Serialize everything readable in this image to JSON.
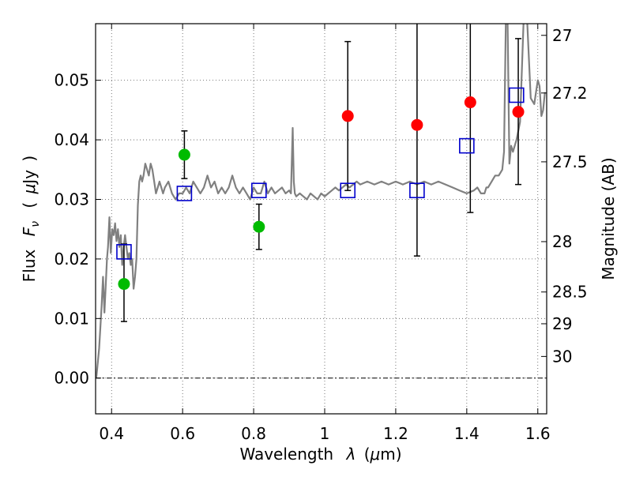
{
  "chart_data": {
    "type": "scatter",
    "xlabel": "Wavelength",
    "xlabel_symbol": "λ",
    "xlabel_unit_open": "(",
    "xlabel_unit_mu": "μ",
    "xlabel_unit_rest": "m)",
    "ylabel": "Flux",
    "ylabel_symbol_F": "F",
    "ylabel_symbol_sub": "ν",
    "ylabel_unit_open": "(",
    "ylabel_unit_mu": "μ",
    "ylabel_unit_rest": "Jy",
    "ylabel_unit_close": ")",
    "y2label": "Magnitude (AB)",
    "xlim": [
      0.355,
      1.625
    ],
    "ylim": [
      -0.006,
      0.0595
    ],
    "x_ticks": [
      0.4,
      0.6,
      0.8,
      1.0,
      1.2,
      1.4,
      1.6
    ],
    "x_tick_labels": [
      "0.4",
      "0.6",
      "0.8",
      "1",
      "1.2",
      "1.4",
      "1.6"
    ],
    "y_ticks": [
      0.0,
      0.01,
      0.02,
      0.03,
      0.04,
      0.05
    ],
    "y_tick_labels": [
      "0.00",
      "0.01",
      "0.02",
      "0.03",
      "0.04",
      "0.05"
    ],
    "mag_ticks": [
      27,
      27.2,
      27.5,
      28,
      28.5,
      29,
      30
    ],
    "mag_tick_labels": [
      "27",
      "27.2",
      "27.5",
      "28",
      "28.5",
      "29",
      "30"
    ],
    "grid": true,
    "colors": {
      "sed": "#808080",
      "green": "#00bb00",
      "red": "#ff0000",
      "model": "#0000cc",
      "errbar": "#000000",
      "grid": "#555555"
    },
    "series": [
      {
        "name": "SED model spectrum",
        "kind": "line",
        "x": [
          0.357,
          0.365,
          0.372,
          0.376,
          0.38,
          0.384,
          0.387,
          0.39,
          0.394,
          0.398,
          0.402,
          0.406,
          0.41,
          0.414,
          0.418,
          0.422,
          0.426,
          0.43,
          0.434,
          0.438,
          0.442,
          0.446,
          0.45,
          0.454,
          0.458,
          0.462,
          0.466,
          0.47,
          0.474,
          0.478,
          0.482,
          0.486,
          0.49,
          0.495,
          0.5,
          0.505,
          0.51,
          0.515,
          0.52,
          0.525,
          0.53,
          0.535,
          0.54,
          0.545,
          0.55,
          0.56,
          0.57,
          0.58,
          0.59,
          0.6,
          0.61,
          0.62,
          0.63,
          0.64,
          0.65,
          0.66,
          0.67,
          0.68,
          0.69,
          0.7,
          0.71,
          0.72,
          0.73,
          0.74,
          0.75,
          0.76,
          0.77,
          0.78,
          0.79,
          0.8,
          0.81,
          0.82,
          0.83,
          0.84,
          0.85,
          0.86,
          0.87,
          0.88,
          0.89,
          0.9,
          0.905,
          0.91,
          0.913,
          0.916,
          0.92,
          0.93,
          0.94,
          0.95,
          0.96,
          0.97,
          0.98,
          0.99,
          1.0,
          1.01,
          1.02,
          1.03,
          1.04,
          1.05,
          1.06,
          1.07,
          1.08,
          1.09,
          1.1,
          1.12,
          1.14,
          1.16,
          1.18,
          1.2,
          1.22,
          1.24,
          1.26,
          1.28,
          1.3,
          1.32,
          1.34,
          1.36,
          1.38,
          1.4,
          1.42,
          1.43,
          1.44,
          1.45,
          1.455,
          1.46,
          1.47,
          1.48,
          1.49,
          1.5,
          1.505,
          1.51,
          1.515,
          1.52,
          1.525,
          1.53,
          1.54,
          1.55,
          1.56,
          1.57,
          1.58,
          1.59,
          1.595,
          1.6,
          1.605,
          1.61,
          1.615,
          1.62
        ],
        "y": [
          0.0,
          0.005,
          0.012,
          0.017,
          0.011,
          0.016,
          0.02,
          0.022,
          0.027,
          0.021,
          0.025,
          0.024,
          0.026,
          0.023,
          0.025,
          0.022,
          0.024,
          0.019,
          0.022,
          0.024,
          0.022,
          0.02,
          0.021,
          0.019,
          0.02,
          0.015,
          0.017,
          0.02,
          0.029,
          0.033,
          0.034,
          0.033,
          0.034,
          0.036,
          0.035,
          0.034,
          0.036,
          0.035,
          0.033,
          0.031,
          0.032,
          0.033,
          0.032,
          0.031,
          0.032,
          0.033,
          0.031,
          0.03,
          0.031,
          0.031,
          0.032,
          0.031,
          0.033,
          0.032,
          0.031,
          0.032,
          0.034,
          0.032,
          0.033,
          0.031,
          0.032,
          0.031,
          0.032,
          0.034,
          0.032,
          0.031,
          0.032,
          0.031,
          0.03,
          0.032,
          0.031,
          0.031,
          0.033,
          0.031,
          0.032,
          0.031,
          0.0315,
          0.032,
          0.031,
          0.0315,
          0.031,
          0.042,
          0.033,
          0.031,
          0.0305,
          0.031,
          0.0305,
          0.03,
          0.031,
          0.0305,
          0.03,
          0.031,
          0.0305,
          0.031,
          0.0315,
          0.032,
          0.0315,
          0.032,
          0.0325,
          0.032,
          0.0325,
          0.033,
          0.0325,
          0.033,
          0.0325,
          0.033,
          0.0325,
          0.033,
          0.0325,
          0.033,
          0.0325,
          0.033,
          0.0325,
          0.033,
          0.0325,
          0.032,
          0.0315,
          0.031,
          0.0315,
          0.032,
          0.031,
          0.031,
          0.032,
          0.032,
          0.033,
          0.034,
          0.034,
          0.035,
          0.038,
          0.06,
          0.06,
          0.036,
          0.039,
          0.038,
          0.04,
          0.043,
          0.06,
          0.06,
          0.047,
          0.046,
          0.048,
          0.05,
          0.049,
          0.044,
          0.045,
          0.048
        ]
      },
      {
        "name": "Observed photometry (green)",
        "kind": "points",
        "color_key": "green",
        "x": [
          0.435,
          0.605,
          0.815
        ],
        "y": [
          0.0158,
          0.0375,
          0.0254
        ]
      },
      {
        "name": "Observed photometry (red)",
        "kind": "points",
        "color_key": "red",
        "x": [
          1.065,
          1.26,
          1.41,
          1.545
        ],
        "y": [
          0.044,
          0.0425,
          0.0463,
          0.0447
        ]
      },
      {
        "name": "Model synthetic photometry",
        "kind": "squares",
        "color_key": "model",
        "x": [
          0.435,
          0.605,
          0.815,
          1.065,
          1.26,
          1.4,
          1.54
        ],
        "y": [
          0.0212,
          0.031,
          0.0315,
          0.0315,
          0.0315,
          0.039,
          0.0475
        ]
      },
      {
        "name": "Error bars",
        "kind": "errorbars",
        "x": [
          0.435,
          0.605,
          0.815,
          1.065,
          1.26,
          1.41,
          1.545
        ],
        "ylow": [
          0.0095,
          0.0335,
          0.0216,
          0.0315,
          0.0205,
          0.0278,
          0.0325
        ],
        "yhigh": [
          0.0225,
          0.0415,
          0.0292,
          0.0565,
          0.0595,
          0.0595,
          0.057
        ]
      }
    ]
  }
}
